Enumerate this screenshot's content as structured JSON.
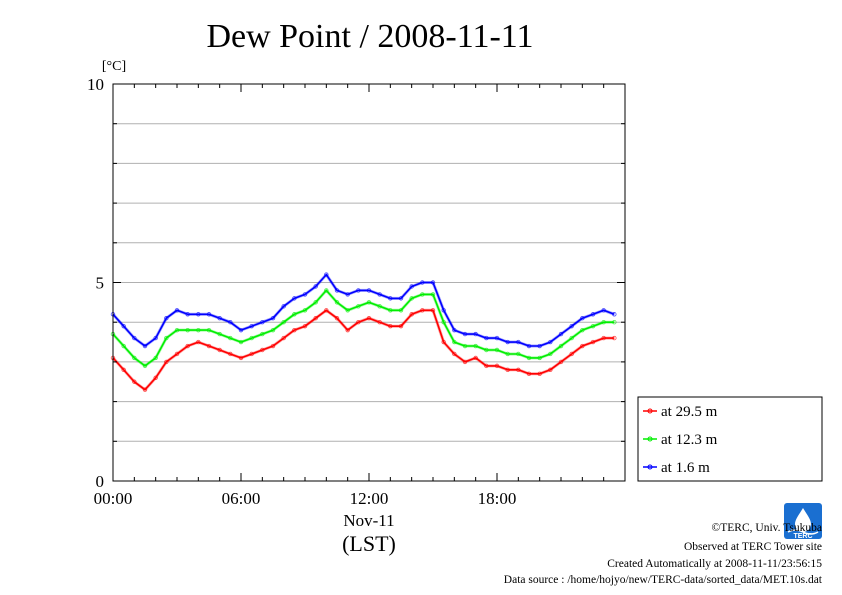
{
  "chart_data": {
    "type": "line",
    "title": "Dew Point / 2008-11-11",
    "ylabel": "[°C]",
    "xlabel_date": "Nov-11",
    "xlabel_tz": "(LST)",
    "ylim": [
      0,
      10
    ],
    "yticks": [
      "0",
      "5",
      "10"
    ],
    "xlim_hours": [
      0,
      24
    ],
    "xticks": [
      {
        "h": 0,
        "label": "00:00"
      },
      {
        "h": 6,
        "label": "06:00"
      },
      {
        "h": 12,
        "label": "12:00"
      },
      {
        "h": 18,
        "label": "18:00"
      }
    ],
    "grid": true,
    "legend_position": "bottom-right",
    "x": [
      0,
      0.5,
      1,
      1.5,
      2,
      2.5,
      3,
      3.5,
      4,
      4.5,
      5,
      5.5,
      6,
      6.5,
      7,
      7.5,
      8,
      8.5,
      9,
      9.5,
      10,
      10.5,
      11,
      11.5,
      12,
      12.5,
      13,
      13.5,
      14,
      14.5,
      15,
      15.5,
      16,
      16.5,
      17,
      17.5,
      18,
      18.5,
      19,
      19.5,
      20,
      20.5,
      21,
      21.5,
      22,
      22.5,
      23,
      23.5
    ],
    "series": [
      {
        "name": "at 29.5 m",
        "color": "#ff0000",
        "values": [
          3.1,
          2.8,
          2.5,
          2.3,
          2.6,
          3.0,
          3.2,
          3.4,
          3.5,
          3.4,
          3.3,
          3.2,
          3.1,
          3.2,
          3.3,
          3.4,
          3.6,
          3.8,
          3.9,
          4.1,
          4.3,
          4.1,
          3.8,
          4.0,
          4.1,
          4.0,
          3.9,
          3.9,
          4.2,
          4.3,
          4.3,
          3.5,
          3.2,
          3.0,
          3.1,
          2.9,
          2.9,
          2.8,
          2.8,
          2.7,
          2.7,
          2.8,
          3.0,
          3.2,
          3.4,
          3.5,
          3.6,
          3.6
        ]
      },
      {
        "name": "at 12.3 m",
        "color": "#00ee00",
        "values": [
          3.7,
          3.4,
          3.1,
          2.9,
          3.1,
          3.6,
          3.8,
          3.8,
          3.8,
          3.8,
          3.7,
          3.6,
          3.5,
          3.6,
          3.7,
          3.8,
          4.0,
          4.2,
          4.3,
          4.5,
          4.8,
          4.5,
          4.3,
          4.4,
          4.5,
          4.4,
          4.3,
          4.3,
          4.6,
          4.7,
          4.7,
          4.0,
          3.5,
          3.4,
          3.4,
          3.3,
          3.3,
          3.2,
          3.2,
          3.1,
          3.1,
          3.2,
          3.4,
          3.6,
          3.8,
          3.9,
          4.0,
          4.0
        ]
      },
      {
        "name": "at 1.6 m",
        "color": "#0000ff",
        "values": [
          4.2,
          3.9,
          3.6,
          3.4,
          3.6,
          4.1,
          4.3,
          4.2,
          4.2,
          4.2,
          4.1,
          4.0,
          3.8,
          3.9,
          4.0,
          4.1,
          4.4,
          4.6,
          4.7,
          4.9,
          5.2,
          4.8,
          4.7,
          4.8,
          4.8,
          4.7,
          4.6,
          4.6,
          4.9,
          5.0,
          5.0,
          4.3,
          3.8,
          3.7,
          3.7,
          3.6,
          3.6,
          3.5,
          3.5,
          3.4,
          3.4,
          3.5,
          3.7,
          3.9,
          4.1,
          4.2,
          4.3,
          4.2
        ]
      }
    ]
  },
  "legend": {
    "items": [
      {
        "label": "at 29.5 m",
        "color": "#ff0000"
      },
      {
        "label": "at 12.3 m",
        "color": "#00ee00"
      },
      {
        "label": "at 1.6 m",
        "color": "#0000ff"
      }
    ]
  },
  "logo": {
    "text": "TERC",
    "color": "#1a6fd1"
  },
  "credits": {
    "copyright": "©TERC, Univ. Tsukuba",
    "observed": "Observed at TERC Tower site",
    "created": "Created Automatically at 2008-11-11/23:56:15",
    "source": "Data source : /home/hojyo/new/TERC-data/sorted_data/MET.10s.dat"
  }
}
